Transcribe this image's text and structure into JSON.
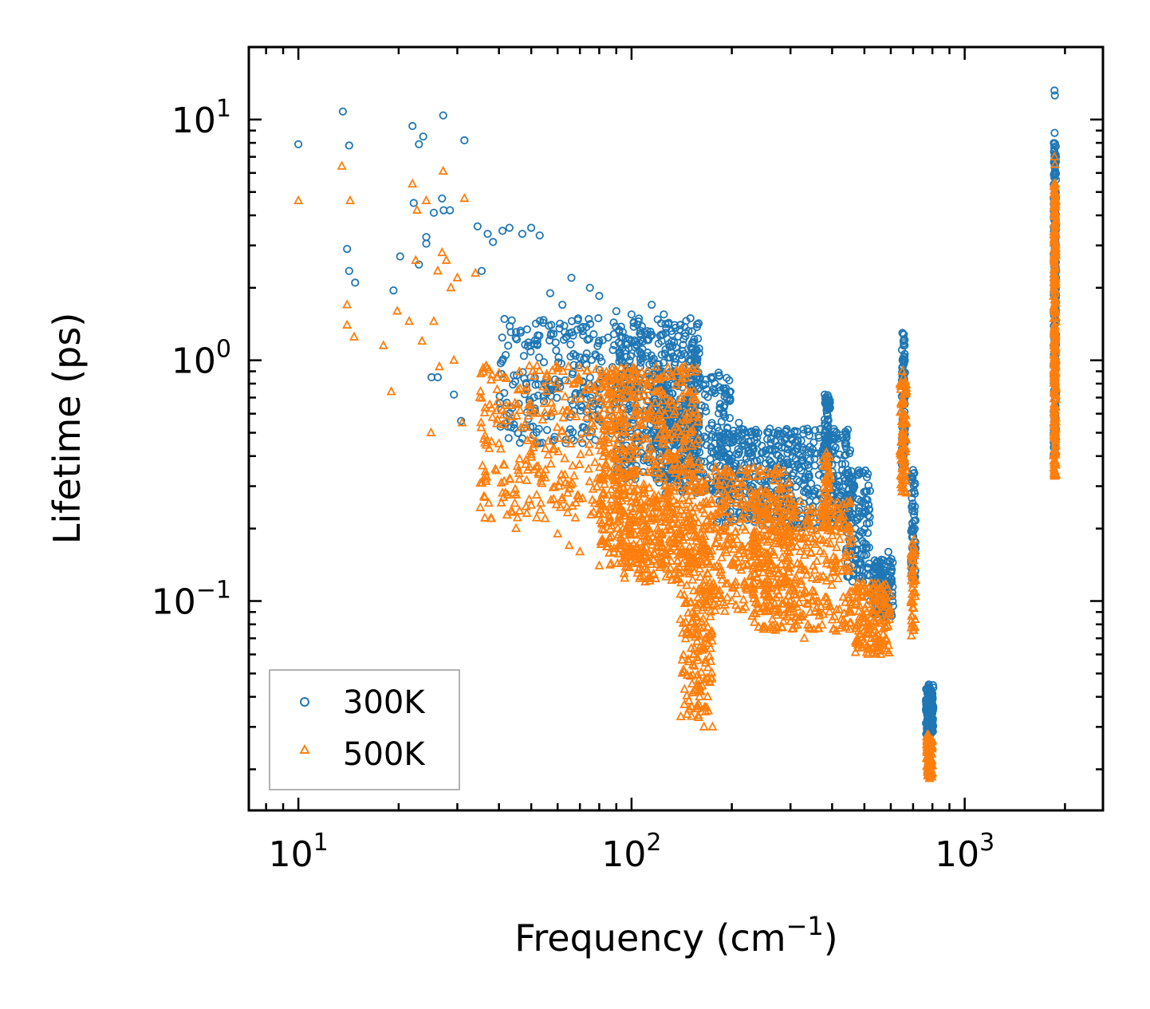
{
  "chart_data": {
    "type": "scatter",
    "xscale": "log",
    "yscale": "log",
    "xlabel": "Frequency (cm",
    "xlabel_sup": "−1",
    "xlabel_end": ")",
    "ylabel": "Lifetime (ps)",
    "xlim": [
      7.1,
      2600
    ],
    "ylim": [
      0.0135,
      20
    ],
    "x_ticks": [
      {
        "value": 10,
        "base": "10",
        "exp": "1"
      },
      {
        "value": 100,
        "base": "10",
        "exp": "2"
      },
      {
        "value": 1000,
        "base": "10",
        "exp": "3"
      }
    ],
    "y_ticks": [
      {
        "value": 0.1,
        "base": "10",
        "exp": "−1"
      },
      {
        "value": 1,
        "base": "10",
        "exp": "0"
      },
      {
        "value": 10,
        "base": "10",
        "exp": "1"
      }
    ],
    "legend_position": "lower-left",
    "series": [
      {
        "name": "300K",
        "color": "#1f77b4",
        "marker": "circle-open",
        "points": [
          [
            10.0,
            7.9
          ],
          [
            13.6,
            10.8
          ],
          [
            14.2,
            7.8
          ],
          [
            14.0,
            2.9
          ],
          [
            14.2,
            2.35
          ],
          [
            14.8,
            2.1
          ],
          [
            19.3,
            1.95
          ],
          [
            20.2,
            2.7
          ],
          [
            22.0,
            9.4
          ],
          [
            22.2,
            4.5
          ],
          [
            23.0,
            7.9
          ],
          [
            23.7,
            8.5
          ],
          [
            23.0,
            2.5
          ],
          [
            24.2,
            3.25
          ],
          [
            24.2,
            3.05
          ],
          [
            25.1,
            0.85
          ],
          [
            25.5,
            4.1
          ],
          [
            26.2,
            0.85
          ],
          [
            27.0,
            4.7
          ],
          [
            27.2,
            10.4
          ],
          [
            27.3,
            4.2
          ],
          [
            28.5,
            4.2
          ],
          [
            29.3,
            0.72
          ],
          [
            30.8,
            0.56
          ],
          [
            31.5,
            8.2
          ],
          [
            34.5,
            3.6
          ],
          [
            35.5,
            2.35
          ],
          [
            37.0,
            3.35
          ],
          [
            38.4,
            3.1
          ],
          [
            41.0,
            3.45
          ],
          [
            43.0,
            3.55
          ],
          [
            47.0,
            3.35
          ],
          [
            50.0,
            3.55
          ],
          [
            53.0,
            3.3
          ],
          [
            57.0,
            1.9
          ],
          [
            62.0,
            1.7
          ],
          [
            66.0,
            2.2
          ],
          [
            75.0,
            2.0
          ],
          [
            80.0,
            1.85
          ],
          [
            90.0,
            1.6
          ],
          [
            100.0,
            1.55
          ],
          [
            105.0,
            1.45
          ],
          [
            115.0,
            1.7
          ],
          [
            125.0,
            1.55
          ],
          [
            140.0,
            1.4
          ],
          [
            160.0,
            0.85
          ],
          [
            178.0,
            0.8
          ],
          [
            185.0,
            0.75
          ],
          [
            190.0,
            0.65
          ],
          [
            210.0,
            0.55
          ],
          [
            260.0,
            0.52
          ],
          [
            310.0,
            0.42
          ],
          [
            380.0,
            0.72
          ],
          [
            385.0,
            0.62
          ],
          [
            420.0,
            0.3
          ],
          [
            470.0,
            0.2
          ],
          [
            495.0,
            0.12
          ],
          [
            520.0,
            0.1
          ],
          [
            555.0,
            0.14
          ],
          [
            590.0,
            0.16
          ],
          [
            650.0,
            1.3
          ],
          [
            655.0,
            1.2
          ],
          [
            660.0,
            0.8
          ],
          [
            700.0,
            0.35
          ],
          [
            780.0,
            0.045
          ],
          [
            790.0,
            0.04
          ],
          [
            1860.0,
            13.2
          ],
          [
            1865.0,
            12.6
          ],
          [
            1862.0,
            8.8
          ]
        ],
        "bands": [
          {
            "x": [
              40,
              95
            ],
            "y": [
              0.45,
              1.5
            ],
            "n": 260
          },
          {
            "x": [
              90,
              160
            ],
            "y": [
              0.32,
              1.5
            ],
            "n": 520
          },
          {
            "x": [
              120,
              200
            ],
            "y": [
              0.28,
              0.9
            ],
            "n": 260
          },
          {
            "x": [
              180,
              460
            ],
            "y": [
              0.2,
              0.52
            ],
            "n": 560
          },
          {
            "x": [
              380,
              395
            ],
            "y": [
              0.35,
              0.72
            ],
            "n": 60
          },
          {
            "x": [
              440,
              520
            ],
            "y": [
              0.12,
              0.35
            ],
            "n": 120
          },
          {
            "x": [
              530,
              610
            ],
            "y": [
              0.085,
              0.15
            ],
            "n": 140
          },
          {
            "x": [
              648,
              662
            ],
            "y": [
              0.35,
              1.3
            ],
            "n": 90
          },
          {
            "x": [
              690,
              712
            ],
            "y": [
              0.12,
              0.34
            ],
            "n": 60
          },
          {
            "x": [
              765,
              805
            ],
            "y": [
              0.028,
              0.045
            ],
            "n": 140
          },
          {
            "x": [
              1850,
              1880
            ],
            "y": [
              0.4,
              8.0
            ],
            "n": 260
          }
        ]
      },
      {
        "name": "500K",
        "color": "#ff7f0e",
        "marker": "triangle-open",
        "points": [
          [
            10.0,
            4.6
          ],
          [
            13.5,
            6.4
          ],
          [
            14.3,
            4.6
          ],
          [
            14.0,
            1.7
          ],
          [
            14.0,
            1.4
          ],
          [
            14.7,
            1.25
          ],
          [
            18.0,
            1.15
          ],
          [
            19.0,
            0.74
          ],
          [
            19.8,
            1.6
          ],
          [
            21.5,
            1.45
          ],
          [
            22.0,
            5.4
          ],
          [
            22.5,
            2.6
          ],
          [
            22.7,
            4.2
          ],
          [
            23.5,
            1.2
          ],
          [
            24.2,
            4.6
          ],
          [
            25.0,
            0.5
          ],
          [
            25.5,
            1.45
          ],
          [
            26.2,
            2.35
          ],
          [
            26.5,
            0.94
          ],
          [
            27.0,
            2.8
          ],
          [
            27.2,
            6.1
          ],
          [
            27.8,
            2.6
          ],
          [
            28.7,
            2.0
          ],
          [
            29.3,
            1.0
          ],
          [
            30.0,
            2.2
          ],
          [
            31.0,
            0.55
          ],
          [
            31.5,
            4.7
          ],
          [
            34.0,
            2.3
          ],
          [
            35.0,
            0.7
          ],
          [
            38.0,
            0.22
          ],
          [
            40.0,
            0.45
          ],
          [
            45.0,
            0.2
          ],
          [
            50.0,
            0.25
          ],
          [
            55.0,
            0.22
          ],
          [
            60.0,
            0.19
          ],
          [
            65.0,
            0.17
          ],
          [
            70.0,
            0.16
          ],
          [
            80.0,
            0.14
          ],
          [
            95.0,
            0.13
          ],
          [
            110.0,
            0.12
          ],
          [
            140.0,
            0.13
          ],
          [
            155.0,
            0.08
          ],
          [
            160.0,
            0.04
          ],
          [
            165.0,
            0.03
          ],
          [
            170.0,
            0.035
          ],
          [
            175.0,
            0.03
          ],
          [
            200.0,
            0.1
          ],
          [
            250.0,
            0.11
          ],
          [
            300.0,
            0.09
          ],
          [
            330.0,
            0.07
          ],
          [
            380.0,
            0.4
          ],
          [
            450.0,
            0.09
          ],
          [
            480.0,
            0.075
          ],
          [
            510.0,
            0.065
          ],
          [
            560.0,
            0.06
          ],
          [
            580.0,
            0.07
          ],
          [
            650.0,
            0.9
          ],
          [
            655.0,
            0.85
          ],
          [
            705.0,
            0.18
          ],
          [
            780.0,
            0.024
          ],
          [
            790.0,
            0.021
          ],
          [
            1860.0,
            7.0
          ],
          [
            1865.0,
            6.5
          ],
          [
            1862.0,
            0.33
          ]
        ],
        "bands": [
          {
            "x": [
              35,
              95
            ],
            "y": [
              0.22,
              0.95
            ],
            "n": 300
          },
          {
            "x": [
              80,
              160
            ],
            "y": [
              0.14,
              0.95
            ],
            "n": 600
          },
          {
            "x": [
              90,
              140
            ],
            "y": [
              0.12,
              0.3
            ],
            "n": 160
          },
          {
            "x": [
              140,
              175
            ],
            "y": [
              0.032,
              0.22
            ],
            "n": 200
          },
          {
            "x": [
              160,
              300
            ],
            "y": [
              0.09,
              0.36
            ],
            "n": 360
          },
          {
            "x": [
              230,
              460
            ],
            "y": [
              0.075,
              0.26
            ],
            "n": 400
          },
          {
            "x": [
              375,
              395
            ],
            "y": [
              0.2,
              0.42
            ],
            "n": 50
          },
          {
            "x": [
              470,
              600
            ],
            "y": [
              0.06,
              0.12
            ],
            "n": 160
          },
          {
            "x": [
              640,
              668
            ],
            "y": [
              0.28,
              0.88
            ],
            "n": 90
          },
          {
            "x": [
              690,
              712
            ],
            "y": [
              0.07,
              0.18
            ],
            "n": 50
          },
          {
            "x": [
              768,
              800
            ],
            "y": [
              0.018,
              0.028
            ],
            "n": 110
          },
          {
            "x": [
              1850,
              1880
            ],
            "y": [
              0.33,
              5.5
            ],
            "n": 280
          }
        ]
      }
    ]
  }
}
